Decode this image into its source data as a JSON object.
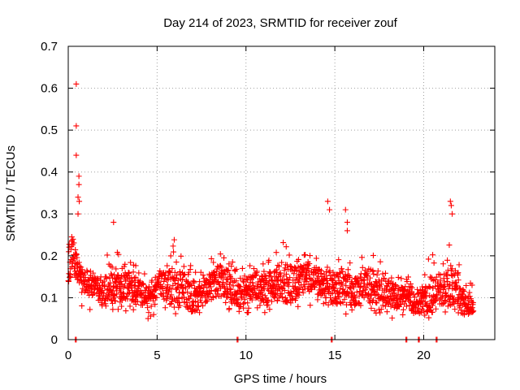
{
  "chart_data": {
    "type": "scatter",
    "title": "Day 214 of 2023, SRMTID for receiver zouf",
    "xlabel": "GPS time / hours",
    "ylabel": "SRMTID / TECUs",
    "xlim": [
      0,
      24
    ],
    "ylim": [
      0,
      0.7
    ],
    "grid": true,
    "marker": "plus",
    "series_color": "#ff0000",
    "x_ticks": [
      0,
      5,
      10,
      15,
      20
    ],
    "x_tick_labels": [
      "0",
      "5",
      "10",
      "15",
      "20"
    ],
    "y_ticks": [
      0,
      0.1,
      0.2,
      0.3,
      0.4,
      0.5,
      0.6,
      0.7
    ],
    "y_tick_labels": [
      "0",
      "0.1",
      "0.2",
      "0.3",
      "0.4",
      "0.5",
      "0.6",
      "0.7"
    ],
    "data_gap_hours": [
      0.4,
      9.5,
      14.8,
      19.0,
      19.7,
      20.7
    ],
    "series": [
      {
        "name": "SRMTID",
        "envelope_hours": [
          0,
          0.25,
          0.5,
          0.75,
          1,
          1.5,
          2,
          2.5,
          3,
          3.5,
          4,
          4.5,
          5,
          5.5,
          6,
          6.5,
          7,
          7.5,
          8,
          8.5,
          9,
          9.5,
          10,
          10.5,
          11,
          11.5,
          12,
          12.5,
          13,
          13.5,
          14,
          14.5,
          15,
          15.5,
          16,
          16.5,
          17,
          17.5,
          18,
          18.5,
          19,
          19.5,
          20,
          20.5,
          21,
          21.5,
          22,
          22.5,
          22.8
        ],
        "typical_tecu": [
          0.18,
          0.2,
          0.17,
          0.15,
          0.14,
          0.12,
          0.11,
          0.13,
          0.12,
          0.13,
          0.11,
          0.1,
          0.12,
          0.13,
          0.12,
          0.12,
          0.1,
          0.11,
          0.13,
          0.14,
          0.13,
          0.1,
          0.12,
          0.13,
          0.12,
          0.13,
          0.14,
          0.13,
          0.14,
          0.15,
          0.14,
          0.13,
          0.12,
          0.13,
          0.11,
          0.12,
          0.13,
          0.12,
          0.11,
          0.1,
          0.1,
          0.09,
          0.1,
          0.11,
          0.12,
          0.13,
          0.1,
          0.08,
          0.08
        ],
        "upper_tecu": [
          0.24,
          0.26,
          0.2,
          0.18,
          0.17,
          0.16,
          0.18,
          0.24,
          0.19,
          0.19,
          0.17,
          0.15,
          0.18,
          0.2,
          0.25,
          0.2,
          0.2,
          0.17,
          0.2,
          0.22,
          0.2,
          0.17,
          0.17,
          0.19,
          0.19,
          0.2,
          0.26,
          0.24,
          0.2,
          0.21,
          0.2,
          0.19,
          0.2,
          0.22,
          0.17,
          0.2,
          0.21,
          0.19,
          0.17,
          0.16,
          0.15,
          0.15,
          0.18,
          0.22,
          0.2,
          0.25,
          0.18,
          0.14,
          0.13
        ],
        "lower_tecu": [
          0.08,
          0.1,
          0.1,
          0.08,
          0.07,
          0.05,
          0.06,
          0.07,
          0.06,
          0.06,
          0.05,
          0.05,
          0.06,
          0.07,
          0.06,
          0.06,
          0.05,
          0.06,
          0.07,
          0.08,
          0.07,
          0.06,
          0.06,
          0.07,
          0.06,
          0.07,
          0.08,
          0.07,
          0.08,
          0.08,
          0.08,
          0.07,
          0.06,
          0.06,
          0.05,
          0.06,
          0.06,
          0.06,
          0.05,
          0.05,
          0.04,
          0.04,
          0.05,
          0.05,
          0.06,
          0.07,
          0.05,
          0.05,
          0.05
        ],
        "spikes": [
          {
            "x": 0.45,
            "y": 0.61
          },
          {
            "x": 0.45,
            "y": 0.51
          },
          {
            "x": 0.45,
            "y": 0.44
          },
          {
            "x": 0.6,
            "y": 0.39
          },
          {
            "x": 0.6,
            "y": 0.37
          },
          {
            "x": 0.55,
            "y": 0.34
          },
          {
            "x": 0.62,
            "y": 0.33
          },
          {
            "x": 0.55,
            "y": 0.3
          },
          {
            "x": 2.55,
            "y": 0.28
          },
          {
            "x": 14.6,
            "y": 0.33
          },
          {
            "x": 14.7,
            "y": 0.31
          },
          {
            "x": 15.6,
            "y": 0.31
          },
          {
            "x": 15.7,
            "y": 0.28
          },
          {
            "x": 15.7,
            "y": 0.26
          },
          {
            "x": 21.5,
            "y": 0.33
          },
          {
            "x": 21.55,
            "y": 0.32
          },
          {
            "x": 21.6,
            "y": 0.3
          }
        ]
      }
    ]
  }
}
